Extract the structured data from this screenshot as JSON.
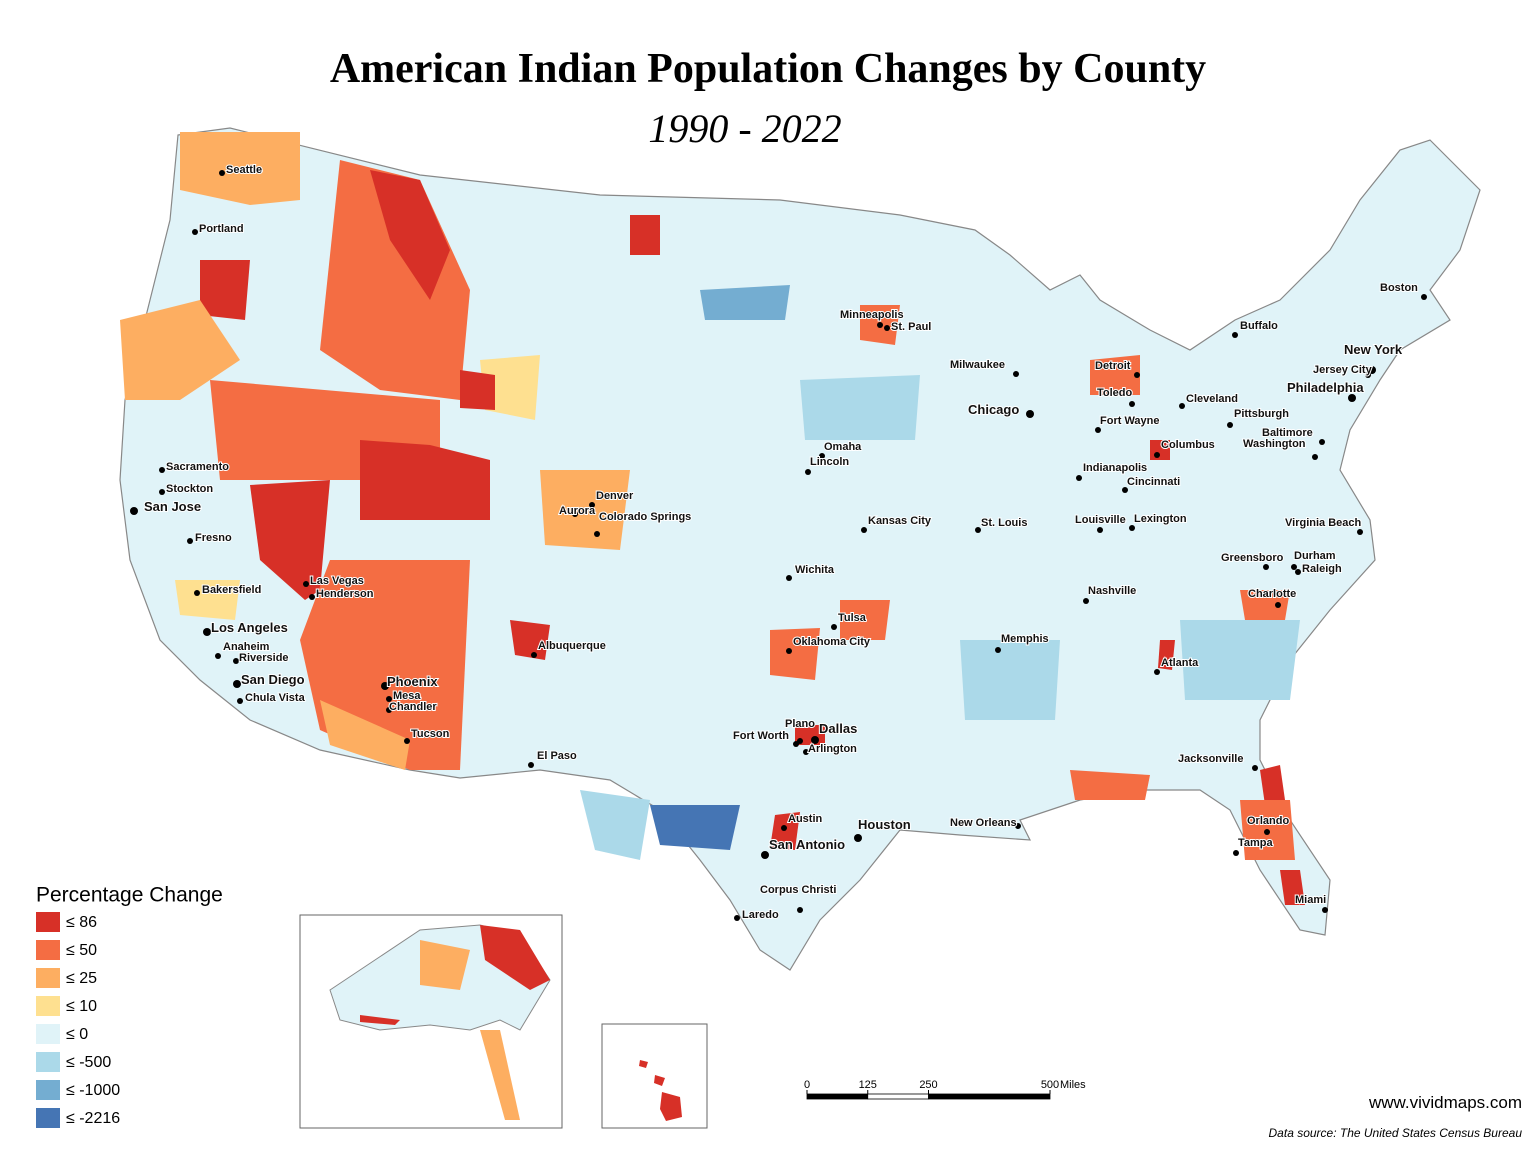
{
  "title": "American Indian Population Changes by County",
  "subtitle": "1990 - 2022",
  "legend": {
    "title": "Percentage Change",
    "items": [
      {
        "label": "≤ 86",
        "color": "#d73027"
      },
      {
        "label": "≤ 50",
        "color": "#f46d43"
      },
      {
        "label": "≤ 25",
        "color": "#fdae61"
      },
      {
        "label": "≤ 10",
        "color": "#fee090"
      },
      {
        "label": "≤ 0",
        "color": "#e0f3f8"
      },
      {
        "label": "≤ -500",
        "color": "#abd9e9"
      },
      {
        "label": "≤ -1000",
        "color": "#74add1"
      },
      {
        "label": "≤ -2216",
        "color": "#4575b4"
      }
    ]
  },
  "cities": [
    "Seattle",
    "Portland",
    "Sacramento",
    "Stockton",
    "San Jose",
    "Fresno",
    "Bakersfield",
    "Las Vegas",
    "Henderson",
    "Los Angeles",
    "Anaheim",
    "Riverside",
    "San Diego",
    "Chula Vista",
    "Phoenix",
    "Mesa",
    "Chandler",
    "Tucson",
    "Albuquerque",
    "El Paso",
    "Denver",
    "Aurora",
    "Colorado Springs",
    "Minneapolis",
    "St. Paul",
    "Omaha",
    "Lincoln",
    "Kansas City",
    "Wichita",
    "Tulsa",
    "Oklahoma City",
    "Plano",
    "Dallas",
    "Fort Worth",
    "Arlington",
    "Austin",
    "San Antonio",
    "Houston",
    "Corpus Christi",
    "Laredo",
    "New Orleans",
    "Memphis",
    "St. Louis",
    "Chicago",
    "Milwaukee",
    "Nashville",
    "Louisville",
    "Lexington",
    "Indianapolis",
    "Cincinnati",
    "Columbus",
    "Fort Wayne",
    "Detroit",
    "Toledo",
    "Cleveland",
    "Atlanta",
    "Charlotte",
    "Greensboro",
    "Durham",
    "Raleigh",
    "Virginia Beach",
    "Jacksonville",
    "Orlando",
    "Tampa",
    "Miami",
    "Washington",
    "Baltimore",
    "Philadelphia",
    "New York",
    "Jersey City",
    "Pittsburgh",
    "Buffalo",
    "Boston"
  ],
  "scale_bar": {
    "ticks": [
      0,
      125,
      250,
      500
    ],
    "unit": "Miles"
  },
  "website": "www.vividmaps.com",
  "source": "Data source: The United States Census Bureau"
}
